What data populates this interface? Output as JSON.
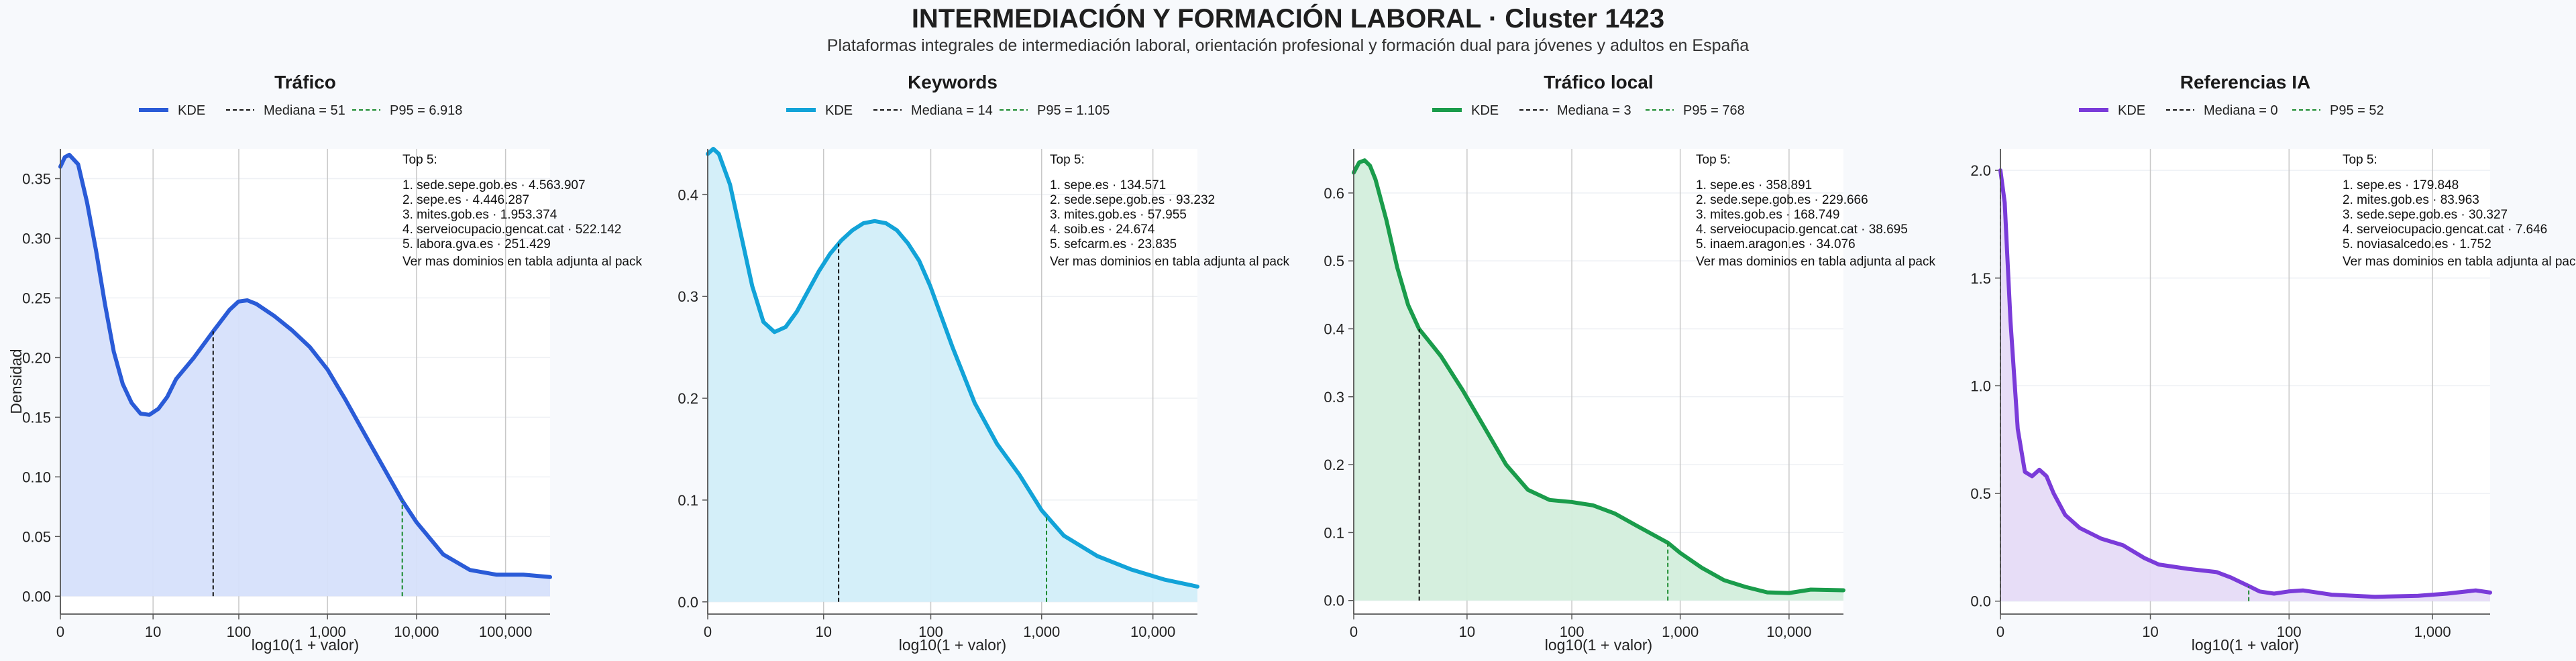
{
  "figure": {
    "title": "INTERMEDIACIÓN Y FORMACIÓN LABORAL · Cluster 1423",
    "subtitle": "Plataformas integrales de intermediación laboral, orientación profesional y formación dual para jóvenes y adultos en España"
  },
  "chart_data": [
    {
      "type": "area",
      "title": "Tráfico",
      "xlabel": "log10(1 + valor)",
      "ylabel": "Densidad",
      "color": "#2a5bd7",
      "fill": "#d6e0fb",
      "xlim": [
        0,
        5.5
      ],
      "ylim": [
        -0.015,
        0.375
      ],
      "yticks": [
        0.0,
        0.05,
        0.1,
        0.15,
        0.2,
        0.25,
        0.3,
        0.35
      ],
      "ytick_labels": [
        "0.00",
        "0.05",
        "0.10",
        "0.15",
        "0.20",
        "0.25",
        "0.30",
        "0.35"
      ],
      "xticks": [
        0,
        1.041,
        2.004,
        3.0,
        4.0,
        5.0
      ],
      "xtick_labels": [
        "0",
        "10",
        "100",
        "1,000",
        "10,000",
        "100,000"
      ],
      "legend": {
        "kde": "KDE",
        "median": "Mediana = 51",
        "p95": "P95 = 6.918"
      },
      "median_x": 1.716,
      "p95_x": 3.84,
      "kde_x": [
        0,
        0.05,
        0.1,
        0.2,
        0.3,
        0.4,
        0.5,
        0.6,
        0.7,
        0.8,
        0.9,
        1.0,
        1.1,
        1.2,
        1.3,
        1.5,
        1.716,
        1.9,
        2.0,
        2.1,
        2.2,
        2.4,
        2.6,
        2.8,
        3.0,
        3.2,
        3.5,
        3.84,
        4.0,
        4.3,
        4.6,
        4.9,
        5.2,
        5.5
      ],
      "kde_y": [
        0.36,
        0.368,
        0.37,
        0.362,
        0.33,
        0.29,
        0.245,
        0.205,
        0.178,
        0.162,
        0.153,
        0.152,
        0.157,
        0.167,
        0.182,
        0.2,
        0.222,
        0.24,
        0.247,
        0.248,
        0.245,
        0.235,
        0.223,
        0.209,
        0.19,
        0.165,
        0.125,
        0.08,
        0.062,
        0.035,
        0.022,
        0.018,
        0.018,
        0.016
      ],
      "annotation": {
        "header": "Top 5:",
        "items": [
          "1. sede.sepe.gob.es · 4.563.907",
          "2. sepe.es · 4.446.287",
          "3. mites.gob.es · 1.953.374",
          "4. serveiocupacio.gencat.cat · 522.142",
          "5. labora.gva.es · 251.429"
        ],
        "footer": "Ver mas dominios en tabla adjunta al pack"
      }
    },
    {
      "type": "area",
      "title": "Keywords",
      "xlabel": "log10(1 + valor)",
      "ylabel": "",
      "color": "#12a3d8",
      "fill": "#d2eef9",
      "xlim": [
        0,
        4.4
      ],
      "ylim": [
        -0.012,
        0.445
      ],
      "yticks": [
        0.0,
        0.1,
        0.2,
        0.3,
        0.4
      ],
      "ytick_labels": [
        "0.0",
        "0.1",
        "0.2",
        "0.3",
        "0.4"
      ],
      "xticks": [
        0,
        1.041,
        2.004,
        3.0,
        4.0
      ],
      "xtick_labels": [
        "0",
        "10",
        "100",
        "1,000",
        "10,000"
      ],
      "legend": {
        "kde": "KDE",
        "median": "Mediana = 14",
        "p95": "P95 = 1.105"
      },
      "median_x": 1.176,
      "p95_x": 3.044,
      "kde_x": [
        0,
        0.05,
        0.1,
        0.2,
        0.3,
        0.4,
        0.5,
        0.6,
        0.7,
        0.8,
        0.9,
        1.0,
        1.1,
        1.2,
        1.3,
        1.4,
        1.5,
        1.6,
        1.7,
        1.8,
        1.9,
        2.0,
        2.2,
        2.4,
        2.6,
        2.8,
        3.0,
        3.2,
        3.5,
        3.8,
        4.1,
        4.4
      ],
      "kde_y": [
        0.44,
        0.445,
        0.44,
        0.41,
        0.36,
        0.31,
        0.275,
        0.265,
        0.27,
        0.285,
        0.305,
        0.325,
        0.342,
        0.355,
        0.365,
        0.372,
        0.374,
        0.372,
        0.365,
        0.352,
        0.335,
        0.31,
        0.25,
        0.195,
        0.155,
        0.125,
        0.09,
        0.065,
        0.045,
        0.032,
        0.022,
        0.015
      ],
      "annotation": {
        "header": "Top 5:",
        "items": [
          "1. sepe.es · 134.571",
          "2. sede.sepe.gob.es · 93.232",
          "3. mites.gob.es · 57.955",
          "4. soib.es · 24.674",
          "5. sefcarm.es · 23.835"
        ],
        "footer": "Ver mas dominios en tabla adjunta al pack"
      }
    },
    {
      "type": "area",
      "title": "Tráfico local",
      "xlabel": "log10(1 + valor)",
      "ylabel": "",
      "color": "#1a9c4b",
      "fill": "#d3eedc",
      "xlim": [
        0,
        4.5
      ],
      "ylim": [
        -0.02,
        0.665
      ],
      "yticks": [
        0.0,
        0.1,
        0.2,
        0.3,
        0.4,
        0.5,
        0.6
      ],
      "ytick_labels": [
        "0.0",
        "0.1",
        "0.2",
        "0.3",
        "0.4",
        "0.5",
        "0.6"
      ],
      "xticks": [
        0,
        1.041,
        2.004,
        3.0,
        4.0
      ],
      "xtick_labels": [
        "0",
        "10",
        "100",
        "1,000",
        "10,000"
      ],
      "legend": {
        "kde": "KDE",
        "median": "Mediana = 3",
        "p95": "P95 = 768"
      },
      "median_x": 0.602,
      "p95_x": 2.886,
      "kde_x": [
        0,
        0.05,
        0.1,
        0.15,
        0.2,
        0.3,
        0.4,
        0.5,
        0.6,
        0.7,
        0.8,
        1.0,
        1.2,
        1.4,
        1.6,
        1.8,
        2.0,
        2.2,
        2.4,
        2.6,
        2.886,
        3.0,
        3.2,
        3.4,
        3.6,
        3.8,
        4.0,
        4.2,
        4.5
      ],
      "kde_y": [
        0.63,
        0.645,
        0.648,
        0.64,
        0.62,
        0.56,
        0.49,
        0.435,
        0.4,
        0.38,
        0.36,
        0.31,
        0.255,
        0.2,
        0.163,
        0.148,
        0.145,
        0.14,
        0.128,
        0.11,
        0.085,
        0.07,
        0.048,
        0.03,
        0.02,
        0.012,
        0.011,
        0.016,
        0.015
      ],
      "annotation": {
        "header": "Top 5:",
        "items": [
          "1. sepe.es · 358.891",
          "2. sede.sepe.gob.es · 229.666",
          "3. mites.gob.es · 168.749",
          "4. serveiocupacio.gencat.cat · 38.695",
          "5. inaem.aragon.es · 34.076"
        ],
        "footer": "Ver mas dominios en tabla adjunta al pack"
      }
    },
    {
      "type": "area",
      "title": "Referencias IA",
      "xlabel": "log10(1 + valor)",
      "ylabel": "",
      "color": "#7a3bd9",
      "fill": "#e6dbf7",
      "xlim": [
        0,
        3.4
      ],
      "ylim": [
        -0.06,
        2.1
      ],
      "yticks": [
        0.0,
        0.5,
        1.0,
        1.5,
        2.0
      ],
      "ytick_labels": [
        "0.0",
        "0.5",
        "1.0",
        "1.5",
        "2.0"
      ],
      "xticks": [
        0,
        1.041,
        2.004,
        3.0
      ],
      "xtick_labels": [
        "0",
        "10",
        "100",
        "1,000"
      ],
      "legend": {
        "kde": "KDE",
        "median": "Mediana = 0",
        "p95": "P95 = 52"
      },
      "median_x": 0.0,
      "p95_x": 1.724,
      "kde_x": [
        0,
        0.03,
        0.07,
        0.12,
        0.17,
        0.22,
        0.27,
        0.32,
        0.37,
        0.45,
        0.55,
        0.7,
        0.85,
        1.0,
        1.1,
        1.3,
        1.5,
        1.6,
        1.724,
        1.8,
        1.9,
        2.0,
        2.1,
        2.3,
        2.6,
        2.9,
        3.1,
        3.3,
        3.4
      ],
      "kde_y": [
        2.0,
        1.85,
        1.3,
        0.8,
        0.6,
        0.58,
        0.61,
        0.58,
        0.5,
        0.4,
        0.34,
        0.29,
        0.26,
        0.2,
        0.17,
        0.15,
        0.135,
        0.11,
        0.07,
        0.045,
        0.035,
        0.045,
        0.05,
        0.03,
        0.02,
        0.025,
        0.035,
        0.05,
        0.04
      ],
      "annotation": {
        "header": "Top 5:",
        "items": [
          "1. sepe.es · 179.848",
          "2. mites.gob.es · 83.963",
          "3. sede.sepe.gob.es · 30.327",
          "4. serveiocupacio.gencat.cat · 7.646",
          "5. noviasalcedo.es · 1.752"
        ],
        "footer": "Ver mas dominios en tabla adjunta al pack"
      }
    }
  ]
}
